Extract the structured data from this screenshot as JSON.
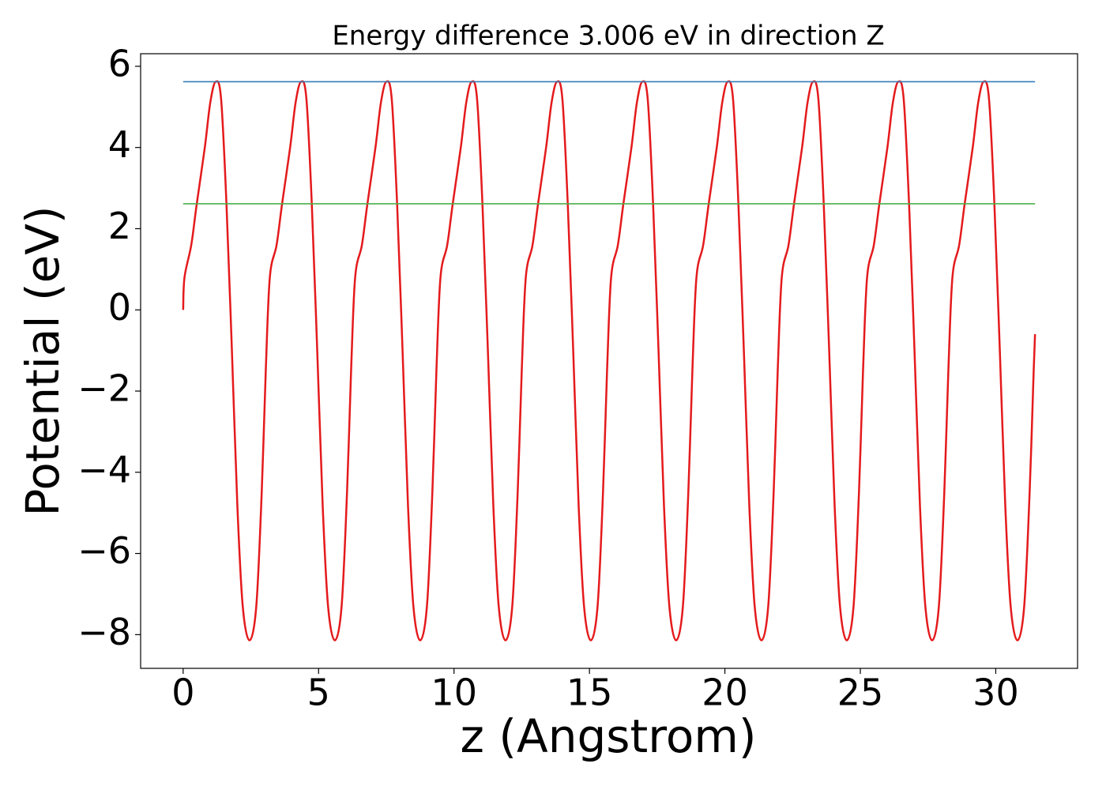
{
  "chart_data": {
    "type": "line",
    "title": "Energy difference 3.006 eV in direction Z",
    "x_label": "z (Angstrom)",
    "y_label": "Potential (eV)",
    "xlim": [
      -1.57,
      33.02
    ],
    "ylim": [
      -8.83,
      6.31
    ],
    "xticks": [
      0,
      5,
      10,
      15,
      20,
      25,
      30
    ],
    "yticks": [
      {
        "value": -8,
        "label": "−8"
      },
      {
        "value": -6,
        "label": "−6"
      },
      {
        "value": -4,
        "label": "−4"
      },
      {
        "value": -2,
        "label": "−2"
      },
      0,
      2,
      4,
      6
    ],
    "series": [
      {
        "color": "#e41a1c",
        "x": [
          0,
          0.05,
          0.3,
          0.5,
          0.8,
          1.0,
          1.2,
          1.4,
          1.6,
          1.8,
          2.0,
          2.2,
          2.45,
          2.7,
          2.9,
          3.05,
          3.2,
          3.45,
          3.65,
          3.95,
          4.15,
          4.35,
          4.55,
          4.75,
          4.95,
          5.15,
          5.35,
          5.6,
          5.85,
          6.05,
          6.2,
          6.35,
          6.6,
          6.8,
          7.1,
          7.3,
          7.5,
          7.7,
          7.9,
          8.1,
          8.3,
          8.5,
          8.75,
          9.0,
          9.2,
          9.35,
          9.5,
          9.75,
          9.95,
          10.25,
          10.45,
          10.65,
          10.85,
          11.05,
          11.25,
          11.45,
          11.65,
          11.9,
          12.15,
          12.35,
          12.5,
          12.65,
          12.9,
          13.1,
          13.4,
          13.6,
          13.8,
          14.0,
          14.2,
          14.4,
          14.6,
          14.8,
          15.05,
          15.3,
          15.5,
          15.65,
          15.8,
          16.05,
          16.25,
          16.55,
          16.75,
          16.95,
          17.15,
          17.35,
          17.55,
          17.75,
          17.95,
          18.2,
          18.45,
          18.65,
          18.8,
          18.95,
          19.2,
          19.4,
          19.7,
          19.9,
          20.1,
          20.3,
          20.5,
          20.7,
          20.9,
          21.1,
          21.35,
          21.6,
          21.8,
          21.95,
          22.1,
          22.35,
          22.55,
          22.85,
          23.05,
          23.25,
          23.45,
          23.65,
          23.85,
          24.05,
          24.25,
          24.5,
          24.75,
          24.95,
          25.1,
          25.25,
          25.5,
          25.7,
          26.0,
          26.2,
          26.4,
          26.6,
          26.8,
          27.0,
          27.2,
          27.4,
          27.65,
          27.9,
          28.1,
          28.25,
          28.4,
          28.65,
          28.85,
          29.15,
          29.35,
          29.55,
          29.75,
          29.95,
          30.15,
          30.35,
          30.55,
          30.8,
          31.05,
          31.25,
          31.4,
          31.45
        ],
        "values": [
          0,
          0.8,
          1.6,
          2.6,
          4,
          5.1,
          5.62,
          5.2,
          2.6,
          -1,
          -4.8,
          -7.3,
          -8.14,
          -7.3,
          -4.5,
          -1.5,
          0.8,
          1.6,
          2.6,
          4,
          5.1,
          5.62,
          5.2,
          2.6,
          -1,
          -4.8,
          -7.3,
          -8.14,
          -7.3,
          -4.5,
          -1.5,
          0.8,
          1.6,
          2.6,
          4,
          5.1,
          5.62,
          5.2,
          2.6,
          -1,
          -4.8,
          -7.3,
          -8.14,
          -7.3,
          -4.5,
          -1.5,
          0.8,
          1.6,
          2.6,
          4,
          5.1,
          5.62,
          5.2,
          2.6,
          -1,
          -4.8,
          -7.3,
          -8.14,
          -7.3,
          -4.5,
          -1.5,
          0.8,
          1.6,
          2.6,
          4,
          5.1,
          5.62,
          5.2,
          2.6,
          -1,
          -4.8,
          -7.3,
          -8.14,
          -7.3,
          -4.5,
          -1.5,
          0.8,
          1.6,
          2.6,
          4,
          5.1,
          5.62,
          5.2,
          2.6,
          -1,
          -4.8,
          -7.3,
          -8.14,
          -7.3,
          -4.5,
          -1.5,
          0.8,
          1.6,
          2.6,
          4,
          5.1,
          5.62,
          5.2,
          2.6,
          -1,
          -4.8,
          -7.3,
          -8.14,
          -7.3,
          -4.5,
          -1.5,
          0.8,
          1.6,
          2.6,
          4,
          5.1,
          5.62,
          5.2,
          2.6,
          -1,
          -4.8,
          -7.3,
          -8.14,
          -7.3,
          -4.5,
          -1.5,
          0.8,
          1.6,
          2.6,
          4,
          5.1,
          5.62,
          5.2,
          2.6,
          -1,
          -4.8,
          -7.3,
          -8.14,
          -7.3,
          -4.5,
          -1.5,
          0.8,
          1.6,
          2.6,
          4,
          5.1,
          5.62,
          5.2,
          2.6,
          -1,
          -4.8,
          -7.3,
          -8.14,
          -7.3,
          -4.5,
          -1.5,
          -0.6
        ],
        "width": 2.5
      },
      {
        "color": "#377eb8",
        "x": [
          0,
          31.45
        ],
        "values": [
          5.62,
          5.62
        ],
        "width": 1.6
      },
      {
        "color": "#4daf4a",
        "x": [
          0,
          31.45
        ],
        "values": [
          2.614,
          2.614
        ],
        "width": 1.6
      }
    ]
  }
}
